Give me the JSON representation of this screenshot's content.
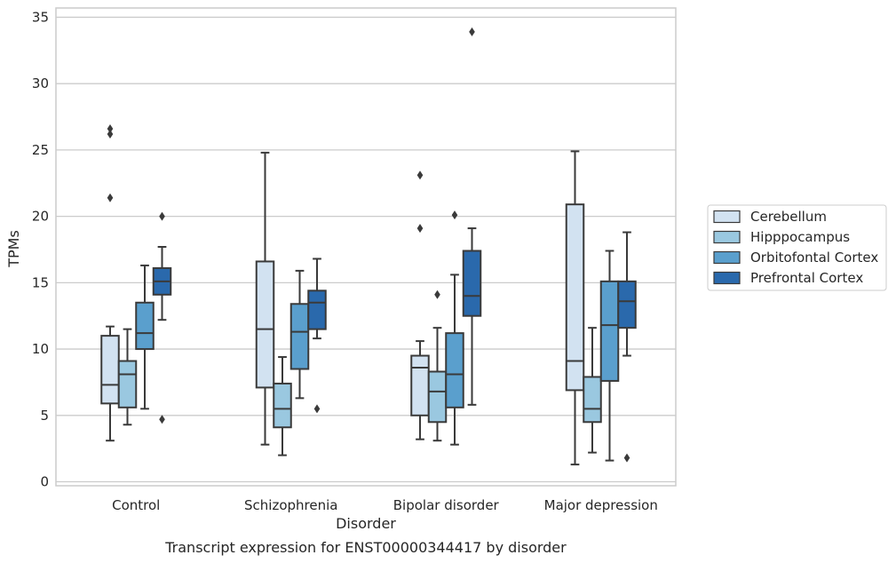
{
  "chart_data": {
    "type": "box",
    "title": "",
    "caption": "Transcript expression for ENST00000344417 by disorder",
    "xlabel": "Disorder",
    "ylabel": "TPMs",
    "ylim": [
      -0.3,
      35.7
    ],
    "yticks": [
      "0",
      "5",
      "10",
      "15",
      "20",
      "25",
      "30",
      "35"
    ],
    "grid": "horizontal",
    "legend_position": "right",
    "categories": [
      "Control",
      "Schizophrenia",
      "Bipolar disorder",
      "Major depression"
    ],
    "series": [
      {
        "name": "Cerebellum",
        "color": "#d2e2f1",
        "boxes": [
          {
            "whislo": 3.1,
            "q1": 5.9,
            "med": 7.3,
            "q3": 11.0,
            "whishi": 11.7,
            "fliers": [
              21.4,
              26.2,
              26.6
            ]
          },
          {
            "whislo": 2.8,
            "q1": 7.1,
            "med": 11.5,
            "q3": 16.6,
            "whishi": 24.8,
            "fliers": []
          },
          {
            "whislo": 3.2,
            "q1": 5.0,
            "med": 8.6,
            "q3": 9.5,
            "whishi": 10.6,
            "fliers": [
              19.1,
              23.1
            ]
          },
          {
            "whislo": 1.3,
            "q1": 6.9,
            "med": 9.1,
            "q3": 20.9,
            "whishi": 24.9,
            "fliers": []
          }
        ]
      },
      {
        "name": "Hipppocampus",
        "color": "#9ac8e0",
        "boxes": [
          {
            "whislo": 4.3,
            "q1": 5.6,
            "med": 8.1,
            "q3": 9.1,
            "whishi": 11.5,
            "fliers": []
          },
          {
            "whislo": 2.0,
            "q1": 4.1,
            "med": 5.5,
            "q3": 7.4,
            "whishi": 9.4,
            "fliers": []
          },
          {
            "whislo": 3.1,
            "q1": 4.5,
            "med": 6.8,
            "q3": 8.3,
            "whishi": 11.6,
            "fliers": [
              14.1
            ]
          },
          {
            "whislo": 2.2,
            "q1": 4.5,
            "med": 5.5,
            "q3": 7.9,
            "whishi": 11.6,
            "fliers": []
          }
        ]
      },
      {
        "name": "Orbitofontal Cortex",
        "color": "#5a9fcd",
        "boxes": [
          {
            "whislo": 5.5,
            "q1": 10.0,
            "med": 11.2,
            "q3": 13.5,
            "whishi": 16.3,
            "fliers": []
          },
          {
            "whislo": 6.3,
            "q1": 8.5,
            "med": 11.3,
            "q3": 13.4,
            "whishi": 15.9,
            "fliers": []
          },
          {
            "whislo": 2.8,
            "q1": 5.6,
            "med": 8.1,
            "q3": 11.2,
            "whishi": 15.6,
            "fliers": [
              20.1
            ]
          },
          {
            "whislo": 1.6,
            "q1": 7.6,
            "med": 11.8,
            "q3": 15.1,
            "whishi": 17.4,
            "fliers": []
          }
        ]
      },
      {
        "name": "Prefrontal Cortex",
        "color": "#2a69ac",
        "boxes": [
          {
            "whislo": 12.2,
            "q1": 14.1,
            "med": 15.1,
            "q3": 16.1,
            "whishi": 17.7,
            "fliers": [
              4.7,
              20.0
            ]
          },
          {
            "whislo": 10.8,
            "q1": 11.5,
            "med": 13.5,
            "q3": 14.4,
            "whishi": 16.8,
            "fliers": [
              5.5
            ]
          },
          {
            "whislo": 5.8,
            "q1": 12.5,
            "med": 14.0,
            "q3": 17.4,
            "whishi": 19.1,
            "fliers": [
              33.9
            ]
          },
          {
            "whislo": 9.5,
            "q1": 11.6,
            "med": 13.6,
            "q3": 15.1,
            "whishi": 18.8,
            "fliers": [
              1.8
            ]
          }
        ]
      }
    ]
  }
}
